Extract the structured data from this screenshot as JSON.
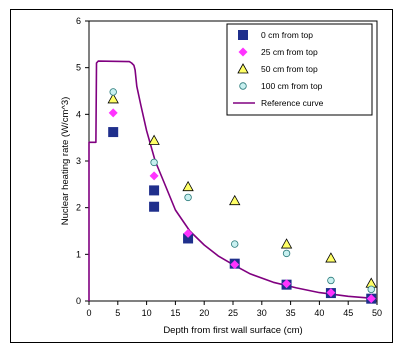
{
  "chart_data": {
    "type": "scatter",
    "title": "",
    "xlabel": "Depth from first wall surface (cm)",
    "ylabel": "Nuclear heating rate (W/cm^3)",
    "xlim": [
      0,
      50
    ],
    "ylim": [
      0,
      6
    ],
    "x_ticks": [
      0,
      5,
      10,
      15,
      20,
      25,
      30,
      35,
      40,
      45,
      50
    ],
    "y_ticks": [
      0,
      1,
      2,
      3,
      4,
      5,
      6
    ],
    "grid": false,
    "legend_position": "top-right",
    "series": [
      {
        "name": "0 cm from top",
        "marker": "square",
        "color": "#1f2f8c",
        "x": [
          4.2,
          11.3,
          11.3,
          17.2,
          25.3,
          34.3,
          42.0,
          49.0
        ],
        "y": [
          3.62,
          2.37,
          2.02,
          1.34,
          0.8,
          0.35,
          0.17,
          0.05
        ]
      },
      {
        "name": "25 cm from top",
        "marker": "diamond",
        "color": "#ff33ff",
        "x": [
          4.2,
          11.3,
          17.2,
          25.3,
          34.3,
          42.0,
          49.0
        ],
        "y": [
          4.03,
          2.68,
          1.45,
          0.78,
          0.37,
          0.18,
          0.05
        ]
      },
      {
        "name": "50 cm from top",
        "marker": "triangle",
        "color": "#ffff66",
        "x": [
          4.2,
          11.3,
          17.2,
          25.3,
          34.3,
          42.0,
          49.0
        ],
        "y": [
          4.33,
          3.44,
          2.45,
          2.15,
          1.22,
          0.92,
          0.38
        ]
      },
      {
        "name": "100 cm from top",
        "marker": "circle",
        "color": "#c8f0f0",
        "x": [
          4.2,
          11.3,
          17.2,
          25.3,
          34.3,
          42.0,
          49.0
        ],
        "y": [
          4.48,
          2.97,
          2.22,
          1.22,
          1.02,
          0.44,
          0.25
        ]
      }
    ],
    "reference_curve": {
      "name": "Reference curve",
      "color": "#800080",
      "x": [
        0,
        0,
        1.2,
        1.2,
        1.3,
        1.6,
        7.0,
        7.4,
        7.8,
        8.0,
        8.3,
        9.0,
        10.0,
        11.5,
        13.0,
        15.0,
        17.5,
        20.0,
        22.5,
        25.0,
        28.0,
        32.0,
        36.0,
        40.0,
        45.0,
        50.0
      ],
      "y": [
        0,
        3.4,
        3.4,
        3.4,
        5.1,
        5.14,
        5.13,
        5.1,
        5.05,
        4.95,
        4.6,
        4.2,
        3.65,
        3.0,
        2.55,
        1.95,
        1.5,
        1.2,
        0.96,
        0.78,
        0.58,
        0.4,
        0.28,
        0.18,
        0.1,
        0.05
      ]
    }
  }
}
